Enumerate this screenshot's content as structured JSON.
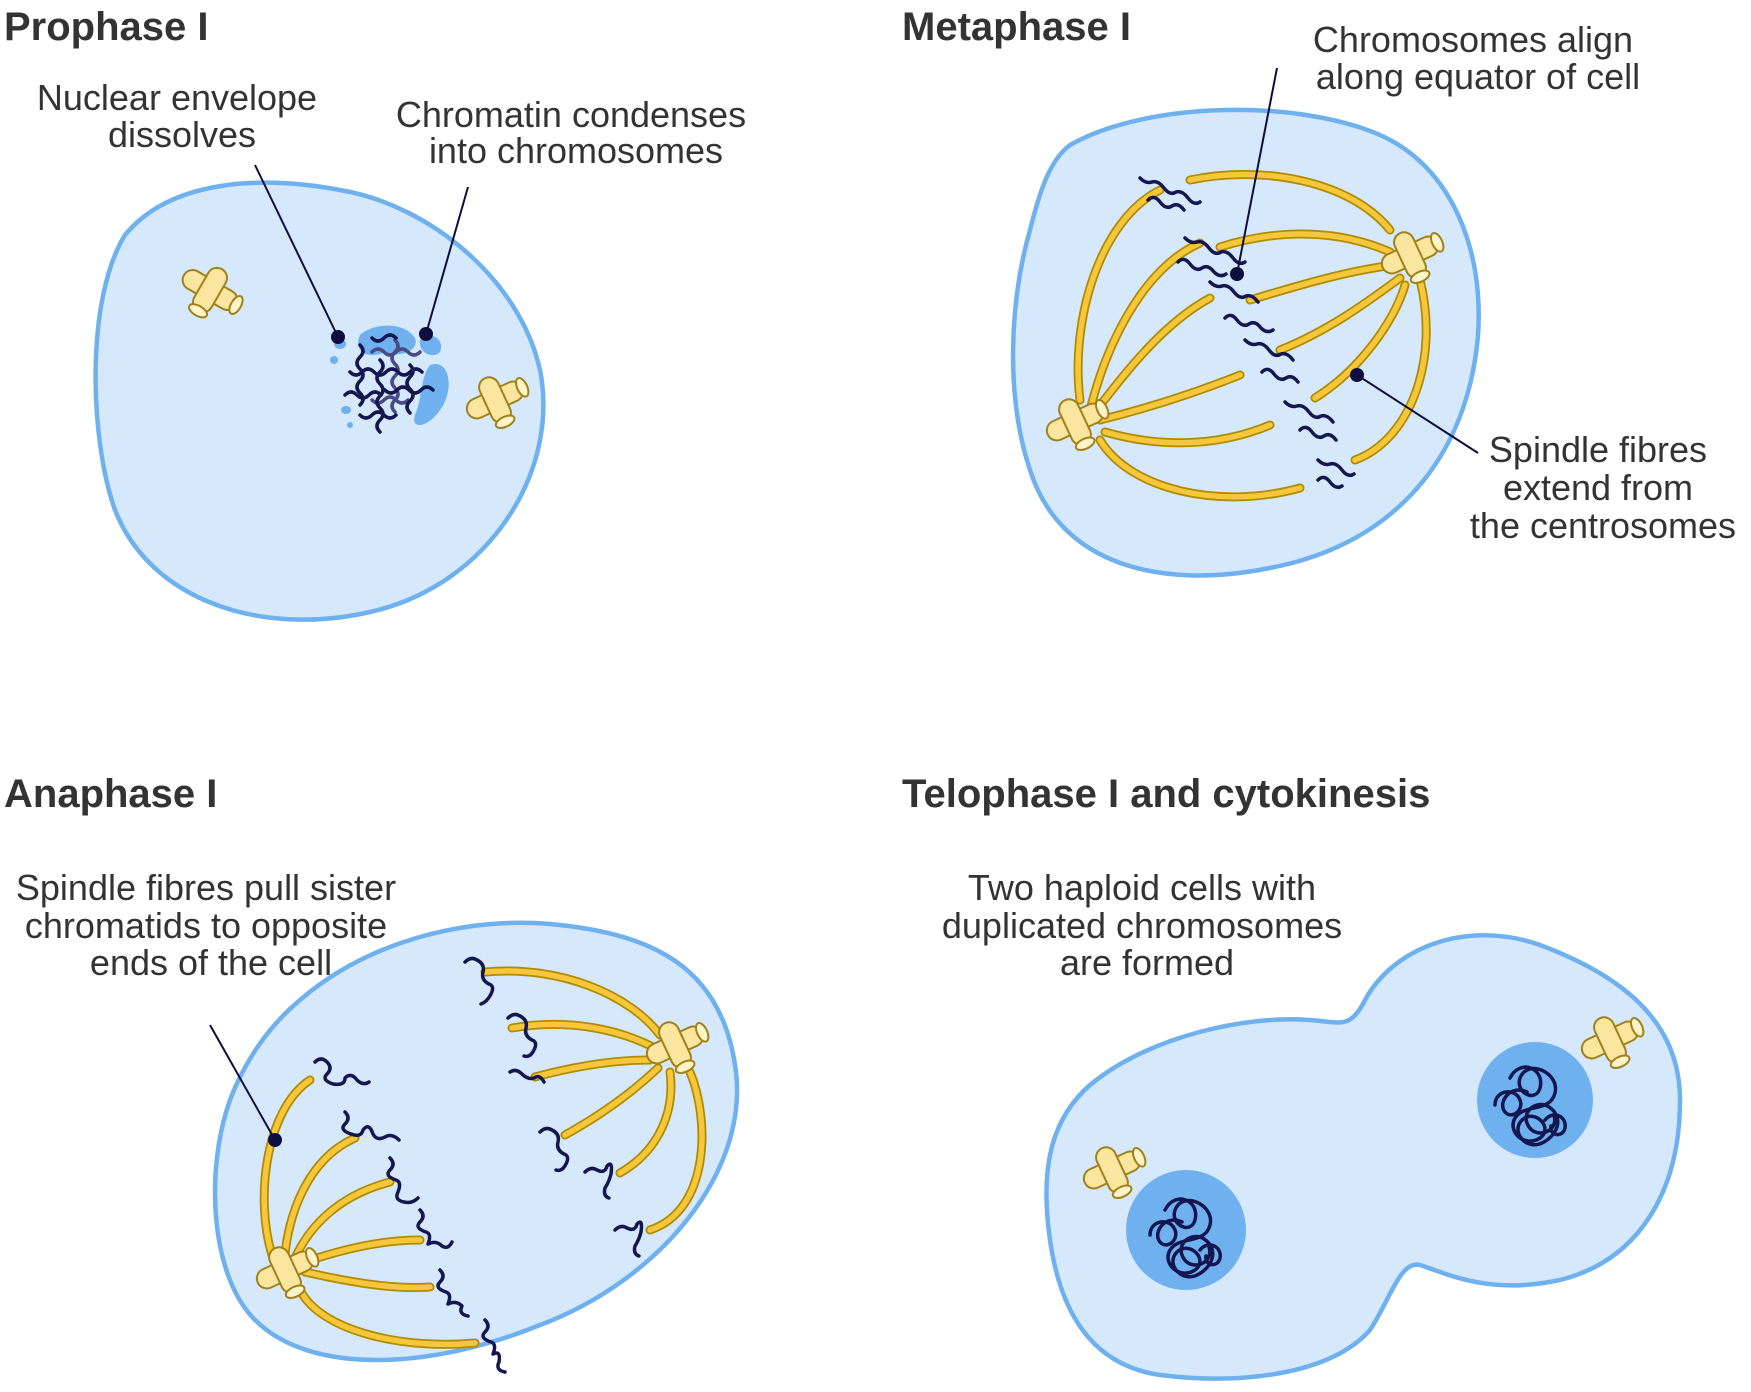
{
  "panels": [
    {
      "id": "prophase",
      "title": "Prophase I",
      "labels": [
        [
          "Nuclear envelope",
          "dissolves"
        ],
        [
          "Chromatin condenses",
          "into chromosomes"
        ]
      ]
    },
    {
      "id": "metaphase",
      "title": "Metaphase I",
      "labels": [
        [
          "Chromosomes align",
          "along equator of cell"
        ],
        [
          "Spindle fibres",
          "extend from",
          "the centrosomes"
        ]
      ]
    },
    {
      "id": "anaphase",
      "title": "Anaphase I",
      "labels": [
        [
          "Spindle fibres pull sister",
          "chromatids to opposite",
          "ends of the cell"
        ]
      ]
    },
    {
      "id": "telophase",
      "title": "Telophase I and cytokinesis",
      "labels": [
        [
          "Two haploid cells with",
          "duplicated chromosomes",
          "are formed"
        ]
      ]
    }
  ],
  "colors": {
    "cell_fill": "#d6e8fb",
    "cell_outline": "#6fb1ee",
    "nucleus": "#6fb1ee",
    "chromosome": "#14164f",
    "spindle_fibre": "#f6c73a",
    "centrosome": "#fbe6a0",
    "leader_line": "#0d0d40",
    "text": "#333333"
  }
}
